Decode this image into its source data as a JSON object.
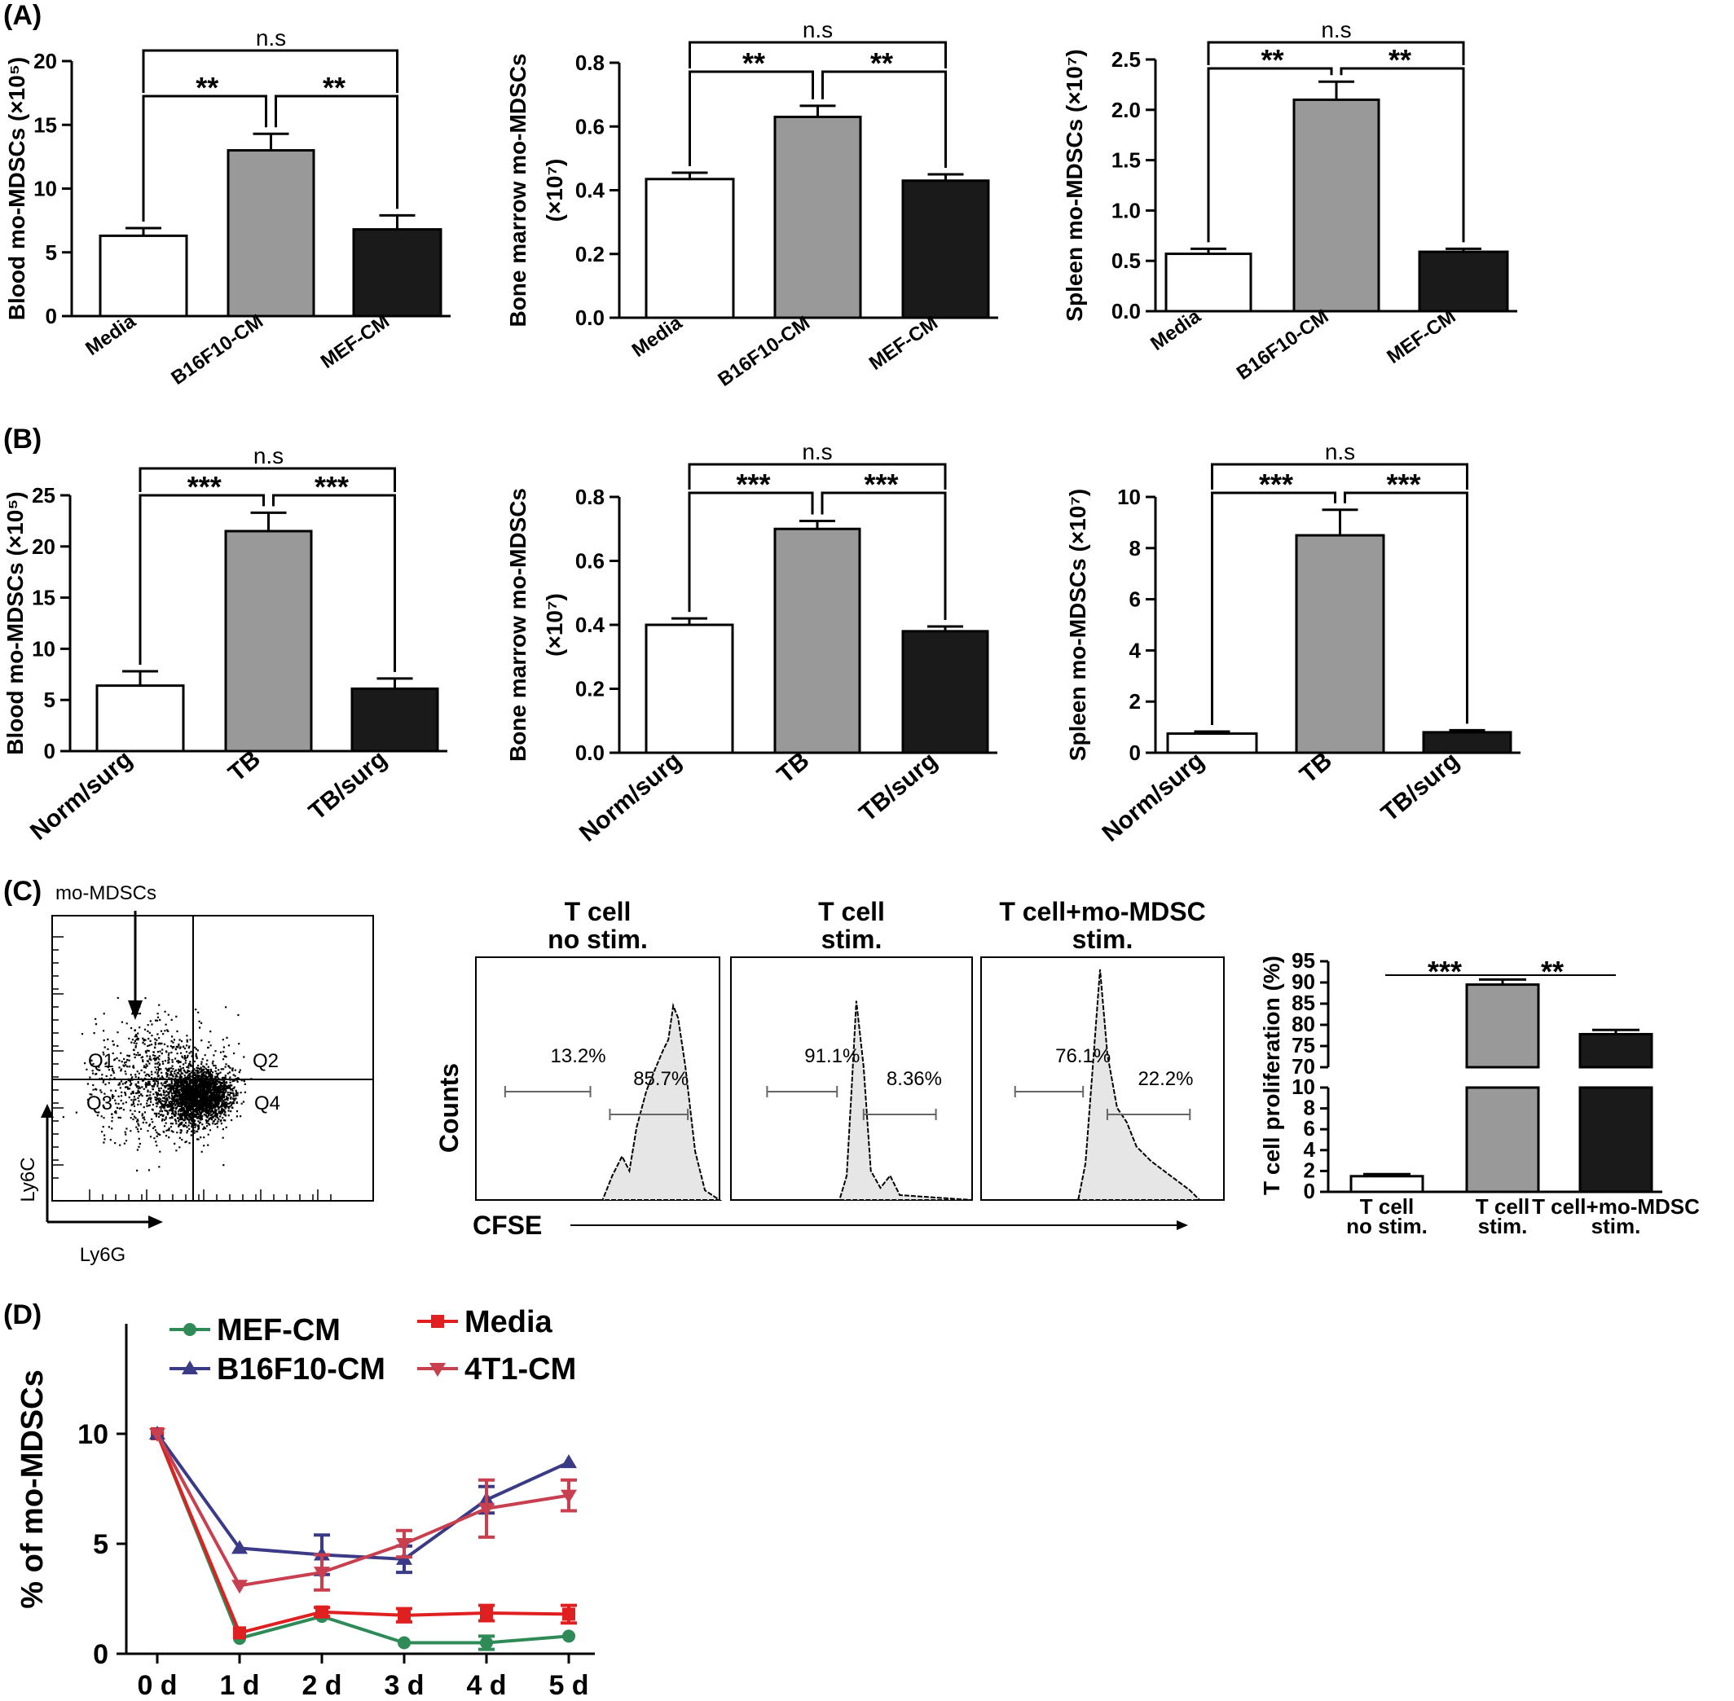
{
  "panels": {
    "A": "(A)",
    "B": "(B)",
    "C": "(C)",
    "D": "(D)"
  },
  "chart_data": [
    {
      "id": "A1",
      "type": "bar",
      "categories": [
        "Media",
        "B16F10-CM",
        "MEF-CM"
      ],
      "values": [
        6.3,
        13,
        6.8
      ],
      "errors": [
        0.6,
        1.3,
        1.1
      ],
      "fills": [
        "#ffffff",
        "#999999",
        "#1a1a1a"
      ],
      "ylabel": "Blood mo-MDSCs (×10⁵)",
      "ylim": [
        0,
        20
      ],
      "yticks": [
        0,
        5,
        10,
        15,
        20
      ],
      "yticklabels": [
        "0",
        "5",
        "10",
        "15",
        "20"
      ],
      "sig": {
        "left": "**",
        "right": "**",
        "top": "n.s"
      }
    },
    {
      "id": "A2",
      "type": "bar",
      "categories": [
        "Media",
        "B16F10-CM",
        "MEF-CM"
      ],
      "values": [
        0.435,
        0.63,
        0.43
      ],
      "errors": [
        0.02,
        0.035,
        0.02
      ],
      "fills": [
        "#ffffff",
        "#999999",
        "#1a1a1a"
      ],
      "ylabel": "Bone marrow mo-MDSCs",
      "ylabel2": "(×10⁷)",
      "ylim": [
        0,
        0.8
      ],
      "yticks": [
        0,
        0.2,
        0.4,
        0.6,
        0.8
      ],
      "yticklabels": [
        "0.0",
        "0.2",
        "0.4",
        "0.6",
        "0.8"
      ],
      "sig": {
        "left": "**",
        "right": "**",
        "top": "n.s"
      }
    },
    {
      "id": "A3",
      "type": "bar",
      "categories": [
        "Media",
        "B16F10-CM",
        "MEF-CM"
      ],
      "values": [
        0.57,
        2.1,
        0.59
      ],
      "errors": [
        0.05,
        0.18,
        0.03
      ],
      "fills": [
        "#ffffff",
        "#999999",
        "#1a1a1a"
      ],
      "ylabel": "Spleen mo-MDSCs (×10⁷)",
      "ylim": [
        0,
        2.5
      ],
      "yticks": [
        0,
        0.5,
        1,
        1.5,
        2,
        2.5
      ],
      "yticklabels": [
        "0.0",
        "0.5",
        "1.0",
        "1.5",
        "2.0",
        "2.5"
      ],
      "sig": {
        "left": "**",
        "right": "**",
        "top": "n.s"
      }
    },
    {
      "id": "B1",
      "type": "bar",
      "categories": [
        "Norm/surg",
        "TB",
        "TB/surg"
      ],
      "values": [
        6.4,
        21.5,
        6.1
      ],
      "errors": [
        1.4,
        1.8,
        1.0
      ],
      "fills": [
        "#ffffff",
        "#999999",
        "#1a1a1a"
      ],
      "ylabel": "Blood mo-MDSCs (×10⁵)",
      "ylim": [
        0,
        25
      ],
      "yticks": [
        0,
        5,
        10,
        15,
        20,
        25
      ],
      "yticklabels": [
        "0",
        "5",
        "10",
        "15",
        "20",
        "25"
      ],
      "sig": {
        "left": "***",
        "right": "***",
        "top": "n.s"
      }
    },
    {
      "id": "B2",
      "type": "bar",
      "categories": [
        "Norm/surg",
        "TB",
        "TB/surg"
      ],
      "values": [
        0.4,
        0.7,
        0.38
      ],
      "errors": [
        0.02,
        0.025,
        0.015
      ],
      "fills": [
        "#ffffff",
        "#999999",
        "#1a1a1a"
      ],
      "ylabel": "Bone marrow mo-MDSCs",
      "ylabel2": "(×10⁷)",
      "ylim": [
        0,
        0.8
      ],
      "yticks": [
        0,
        0.2,
        0.4,
        0.6,
        0.8
      ],
      "yticklabels": [
        "0.0",
        "0.2",
        "0.4",
        "0.6",
        "0.8"
      ],
      "sig": {
        "left": "***",
        "right": "***",
        "top": "n.s"
      }
    },
    {
      "id": "B3",
      "type": "bar",
      "categories": [
        "Norm/surg",
        "TB",
        "TB/surg"
      ],
      "values": [
        0.75,
        8.5,
        0.8
      ],
      "errors": [
        0.08,
        1.0,
        0.08
      ],
      "fills": [
        "#ffffff",
        "#999999",
        "#1a1a1a"
      ],
      "ylabel": "Spleen mo-MDSCs (×10⁷)",
      "ylim": [
        0,
        10
      ],
      "yticks": [
        0,
        2,
        4,
        6,
        8,
        10
      ],
      "yticklabels": [
        "0",
        "2",
        "4",
        "6",
        "8",
        "10"
      ],
      "sig": {
        "left": "***",
        "right": "***",
        "top": "n.s"
      }
    },
    {
      "id": "C-bar",
      "type": "bar",
      "categories": [
        "T cell\nno stim.",
        "T cell\nstim.",
        "T cell+mo-MDSC\nstim."
      ],
      "values": [
        1.5,
        89.5,
        77.8
      ],
      "errors": [
        0.2,
        1.2,
        1.0
      ],
      "fills": [
        "#ffffff",
        "#999999",
        "#1a1a1a"
      ],
      "ylabel": "T cell proliferation (%)",
      "broken_axis": {
        "lower": [
          0,
          10
        ],
        "upper": [
          70,
          95
        ]
      },
      "lower_ticks": [
        "0",
        "2",
        "4",
        "6",
        "8",
        "10"
      ],
      "upper_ticks": [
        "70",
        "75",
        "80",
        "85",
        "90",
        "95"
      ],
      "sig": {
        "left": "***",
        "right": "**"
      }
    },
    {
      "id": "C-flow",
      "type": "scatter",
      "xlabel": "Ly6G",
      "ylabel": "Ly6C",
      "title": "mo-MDSCs",
      "quadrants": [
        "Q1",
        "Q2",
        "Q3",
        "Q4"
      ]
    },
    {
      "id": "C-hist",
      "type": "area",
      "xlabel": "CFSE",
      "ylabel": "Counts",
      "histograms": [
        {
          "title": [
            "T cell",
            "no stim."
          ],
          "left_pct": "13.2%",
          "right_pct": "85.7%"
        },
        {
          "title": [
            "T cell",
            "stim."
          ],
          "left_pct": "91.1%",
          "right_pct": "8.36%"
        },
        {
          "title": [
            "T cell+mo-MDSC",
            "stim."
          ],
          "left_pct": "76.1%",
          "right_pct": "22.2%"
        }
      ]
    },
    {
      "id": "D",
      "type": "line",
      "x": [
        "0 d",
        "1 d",
        "2 d",
        "3 d",
        "4 d",
        "5 d"
      ],
      "ylabel": "% of mo-MDSCs",
      "ylim": [
        0,
        15
      ],
      "yticks": [
        0,
        5,
        10
      ],
      "series": [
        {
          "name": "MEF-CM",
          "color": "#2e8b57",
          "marker": "circle",
          "values": [
            10,
            0.7,
            1.7,
            0.5,
            0.5,
            0.8
          ],
          "errors": [
            0,
            0.1,
            0.1,
            0.1,
            0.3,
            0.1
          ]
        },
        {
          "name": "Media",
          "color": "#e02020",
          "marker": "square",
          "values": [
            10,
            0.95,
            1.9,
            1.75,
            1.85,
            1.8
          ],
          "errors": [
            0,
            0.1,
            0.2,
            0.3,
            0.35,
            0.4
          ]
        },
        {
          "name": "B16F10-CM",
          "color": "#3b3a86",
          "marker": "triangle-up",
          "values": [
            10,
            4.8,
            4.5,
            4.3,
            7.0,
            8.7
          ],
          "errors": [
            0,
            0.1,
            0.9,
            0.6,
            0.6,
            0.1
          ]
        },
        {
          "name": "4T1-CM",
          "color": "#c84050",
          "marker": "triangle-down",
          "values": [
            10,
            3.1,
            3.7,
            5.0,
            6.6,
            7.2
          ],
          "errors": [
            0,
            0.1,
            0.8,
            0.6,
            1.3,
            0.7
          ]
        }
      ]
    }
  ]
}
